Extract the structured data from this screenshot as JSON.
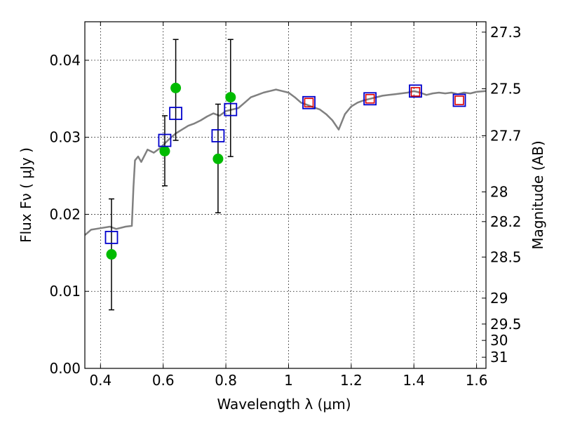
{
  "chart_data": {
    "type": "scatter",
    "xlabel": "Wavelength  λ (μm)",
    "ylabel": "Flux  Fν  ( μJy )",
    "y2label": "Magnitude (AB)",
    "xlim": [
      0.35,
      1.63
    ],
    "ylim": [
      0.0,
      0.045
    ],
    "grid": true,
    "xticks": [
      0.4,
      0.6,
      0.8,
      1.0,
      1.2,
      1.4,
      1.6
    ],
    "xtick_labels": [
      "0.4",
      "0.6",
      "0.8",
      "1",
      "1.2",
      "1.4",
      "1.6"
    ],
    "yticks": [
      0.0,
      0.01,
      0.02,
      0.03,
      0.04
    ],
    "ytick_labels": [
      "0.00",
      "0.01",
      "0.02",
      "0.03",
      "0.04"
    ],
    "y2ticks": [
      27.3,
      27.5,
      27.7,
      28,
      28.2,
      28.5,
      29,
      29.5,
      30,
      31
    ],
    "y2tick_labels": [
      "27.3",
      "27.5",
      "27.7",
      "28",
      "28.2",
      "28.5",
      "29",
      "29.5",
      "30",
      "31"
    ],
    "colors": {
      "sed": "#808080",
      "observed": "#00bb00",
      "errorbar": "#000000",
      "model_blue": "#0000cc",
      "model_red": "#dd0000"
    },
    "series": [
      {
        "type": "line",
        "x": [
          0.35,
          0.37,
          0.4,
          0.43,
          0.45,
          0.48,
          0.5,
          0.505,
          0.51,
          0.52,
          0.53,
          0.55,
          0.57,
          0.59,
          0.6,
          0.62,
          0.64,
          0.66,
          0.68,
          0.7,
          0.72,
          0.74,
          0.76,
          0.78,
          0.8,
          0.82,
          0.84,
          0.86,
          0.88,
          0.9,
          0.92,
          0.94,
          0.96,
          0.98,
          1.0,
          1.02,
          1.04,
          1.06,
          1.08,
          1.1,
          1.12,
          1.14,
          1.16,
          1.18,
          1.2,
          1.22,
          1.24,
          1.26,
          1.28,
          1.3,
          1.32,
          1.34,
          1.36,
          1.38,
          1.4,
          1.42,
          1.44,
          1.46,
          1.48,
          1.5,
          1.52,
          1.54,
          1.56,
          1.58,
          1.6,
          1.63
        ],
        "y": [
          0.0173,
          0.018,
          0.0182,
          0.0184,
          0.0181,
          0.0184,
          0.0185,
          0.0235,
          0.027,
          0.0275,
          0.0268,
          0.0284,
          0.028,
          0.0286,
          0.029,
          0.0298,
          0.0305,
          0.031,
          0.0315,
          0.0318,
          0.0322,
          0.0327,
          0.0331,
          0.0328,
          0.0334,
          0.0336,
          0.0338,
          0.0345,
          0.0352,
          0.0355,
          0.0358,
          0.036,
          0.0362,
          0.036,
          0.0358,
          0.0352,
          0.0345,
          0.0342,
          0.0339,
          0.0336,
          0.033,
          0.0322,
          0.031,
          0.033,
          0.034,
          0.0345,
          0.0348,
          0.035,
          0.0352,
          0.0354,
          0.0355,
          0.0356,
          0.0357,
          0.0358,
          0.036,
          0.0358,
          0.0355,
          0.0357,
          0.0358,
          0.0357,
          0.0358,
          0.0356,
          0.0358,
          0.0357,
          0.0359,
          0.036
        ]
      },
      {
        "type": "observed",
        "x": [
          0.435,
          0.605,
          0.64,
          0.775,
          0.815
        ],
        "y": [
          0.0148,
          0.0282,
          0.0364,
          0.0272,
          0.0352
        ],
        "yerr_low": [
          0.0076,
          0.0237,
          0.0296,
          0.0202,
          0.0275
        ],
        "yerr_high": [
          0.022,
          0.0328,
          0.0427,
          0.0343,
          0.0427
        ]
      },
      {
        "type": "model_blue",
        "x": [
          0.435,
          0.605,
          0.64,
          0.775,
          0.815,
          1.065,
          1.26,
          1.405,
          1.545
        ],
        "y": [
          0.017,
          0.0296,
          0.0331,
          0.0302,
          0.0336,
          0.0345,
          0.035,
          0.036,
          0.0348
        ]
      },
      {
        "type": "model_red",
        "x": [
          1.065,
          1.26,
          1.405,
          1.545
        ],
        "y": [
          0.0345,
          0.035,
          0.0359,
          0.0348
        ]
      }
    ]
  }
}
